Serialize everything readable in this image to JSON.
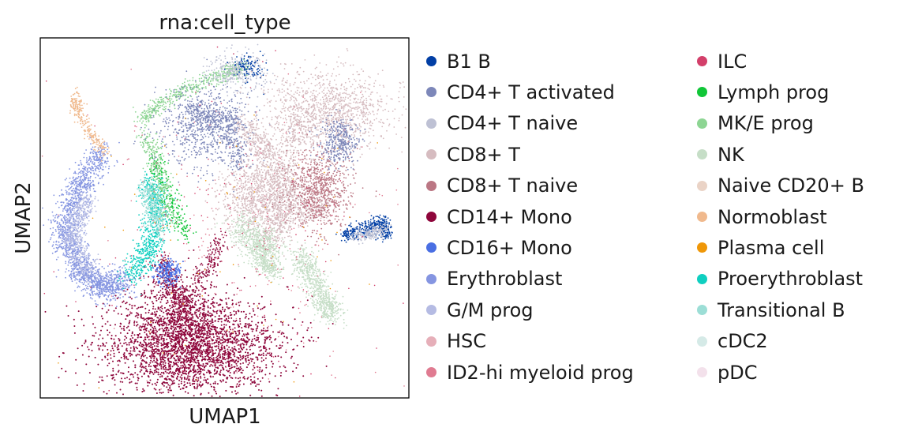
{
  "chart_data": {
    "type": "scatter",
    "title": "rna:cell_type",
    "xlabel": "UMAP1",
    "ylabel": "UMAP2",
    "xticks": false,
    "yticks": false,
    "grid": false,
    "legend_position": "right, two columns",
    "series": [
      {
        "name": "B1 B",
        "color": "#023fa5"
      },
      {
        "name": "CD4+ T activated",
        "color": "#7d87b9"
      },
      {
        "name": "CD4+ T naive",
        "color": "#bec1d4"
      },
      {
        "name": "CD8+ T",
        "color": "#d6bcc0"
      },
      {
        "name": "CD8+ T naive",
        "color": "#bb7784"
      },
      {
        "name": "CD14+ Mono",
        "color": "#8e063b"
      },
      {
        "name": "CD16+ Mono",
        "color": "#4a6fe3"
      },
      {
        "name": "Erythroblast",
        "color": "#8595e1"
      },
      {
        "name": "G/M prog",
        "color": "#b5bbe3"
      },
      {
        "name": "HSC",
        "color": "#e6afb9"
      },
      {
        "name": "ID2-hi myeloid prog",
        "color": "#e07b91"
      },
      {
        "name": "ILC",
        "color": "#d33f6a"
      },
      {
        "name": "Lymph prog",
        "color": "#11c638"
      },
      {
        "name": "MK/E prog",
        "color": "#8dd593"
      },
      {
        "name": "NK",
        "color": "#c6dec7"
      },
      {
        "name": "Naive CD20+ B",
        "color": "#ead3c6"
      },
      {
        "name": "Normoblast",
        "color": "#f0b98d"
      },
      {
        "name": "Plasma cell",
        "color": "#ef9708"
      },
      {
        "name": "Proerythroblast",
        "color": "#0fcfc0"
      },
      {
        "name": "Transitional B",
        "color": "#9cded6"
      },
      {
        "name": "cDC2",
        "color": "#d5eae7"
      },
      {
        "name": "pDC",
        "color": "#f3e1eb"
      }
    ]
  }
}
